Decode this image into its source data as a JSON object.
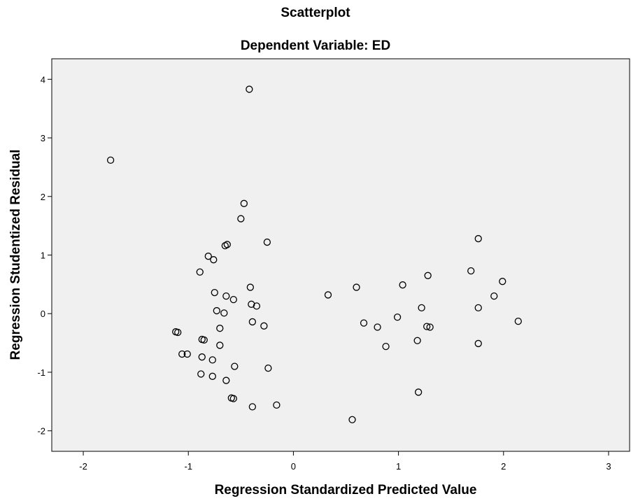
{
  "chart_data": {
    "type": "scatter",
    "title": "Scatterplot",
    "subtitle": "Dependent Variable: ED",
    "xlabel": "Regression Standardized Predicted Value",
    "ylabel": "Regression Studentized Residual",
    "xlim": [
      -2.3,
      3.2
    ],
    "ylim": [
      -2.35,
      4.35
    ],
    "xticks": [
      -2,
      -1,
      0,
      1,
      2,
      3
    ],
    "xtick_labels": [
      "-2",
      "-1",
      "0",
      "1",
      "2",
      "3"
    ],
    "yticks": [
      -2,
      -1,
      0,
      1,
      2,
      3,
      4
    ],
    "ytick_labels": [
      "-2",
      "-1",
      "0",
      "1",
      "2",
      "3",
      "4"
    ],
    "grid": false,
    "plot_background": "#f0f0f0",
    "marker": "open-circle",
    "points": [
      [
        -1.74,
        2.62
      ],
      [
        -0.42,
        3.83
      ],
      [
        -0.47,
        1.88
      ],
      [
        -0.5,
        1.62
      ],
      [
        -0.25,
        1.22
      ],
      [
        -0.65,
        1.16
      ],
      [
        -0.63,
        1.18
      ],
      [
        -0.81,
        0.98
      ],
      [
        -0.76,
        0.92
      ],
      [
        -0.89,
        0.71
      ],
      [
        -0.41,
        0.45
      ],
      [
        -0.75,
        0.36
      ],
      [
        -0.64,
        0.3
      ],
      [
        -0.57,
        0.24
      ],
      [
        -0.4,
        0.16
      ],
      [
        -0.35,
        0.13
      ],
      [
        -0.73,
        0.05
      ],
      [
        -0.66,
        0.01
      ],
      [
        -0.39,
        -0.14
      ],
      [
        -0.28,
        -0.21
      ],
      [
        -0.7,
        -0.25
      ],
      [
        -1.12,
        -0.31
      ],
      [
        -1.1,
        -0.32
      ],
      [
        -0.87,
        -0.44
      ],
      [
        -0.85,
        -0.45
      ],
      [
        -0.7,
        -0.54
      ],
      [
        -1.06,
        -0.69
      ],
      [
        -1.01,
        -0.69
      ],
      [
        -0.87,
        -0.74
      ],
      [
        -0.77,
        -0.79
      ],
      [
        -0.56,
        -0.9
      ],
      [
        -0.24,
        -0.93
      ],
      [
        -0.88,
        -1.03
      ],
      [
        -0.77,
        -1.07
      ],
      [
        -0.64,
        -1.14
      ],
      [
        -0.59,
        -1.44
      ],
      [
        -0.57,
        -1.45
      ],
      [
        -0.39,
        -1.59
      ],
      [
        -0.16,
        -1.56
      ],
      [
        0.33,
        0.32
      ],
      [
        0.6,
        0.45
      ],
      [
        0.67,
        -0.16
      ],
      [
        0.8,
        -0.23
      ],
      [
        0.88,
        -0.56
      ],
      [
        0.56,
        -1.81
      ],
      [
        0.99,
        -0.06
      ],
      [
        1.04,
        0.49
      ],
      [
        1.18,
        -0.46
      ],
      [
        1.22,
        0.1
      ],
      [
        1.27,
        -0.22
      ],
      [
        1.3,
        -0.23
      ],
      [
        1.28,
        0.65
      ],
      [
        1.19,
        -1.34
      ],
      [
        1.69,
        0.73
      ],
      [
        1.76,
        1.28
      ],
      [
        1.76,
        0.1
      ],
      [
        1.76,
        -0.51
      ],
      [
        1.91,
        0.3
      ],
      [
        1.99,
        0.55
      ],
      [
        2.14,
        -0.13
      ]
    ]
  }
}
